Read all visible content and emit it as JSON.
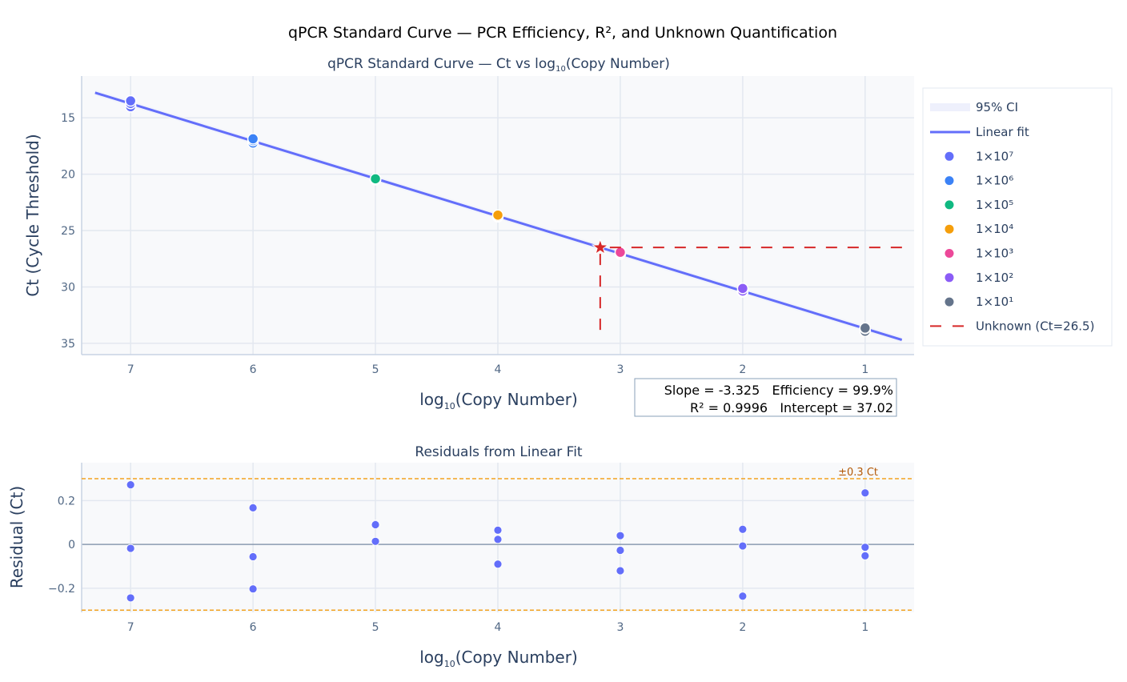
{
  "title": "qPCR Standard Curve — PCR Efficiency, R², and Unknown Quantification",
  "colors": {
    "fit": "#636efa",
    "unknown": "#d62728",
    "threshold": "#f2a221",
    "threshold_text": "#b35806",
    "ci": "#eef0fc",
    "plot_bg": "#f8f9fb",
    "grid": "#e3e8f0"
  },
  "chart_data": [
    {
      "type": "scatter",
      "title": "qPCR Standard Curve — Ct vs log",
      "title_sub": "10",
      "title_end": "(Copy Number)",
      "xlabel_pre": "log",
      "xlabel_sub": "10",
      "xlabel_post": "(Copy Number)",
      "ylabel": "Ct (Cycle Threshold)",
      "xlim": [
        7.4,
        0.6
      ],
      "ylim": [
        36.0,
        11.3
      ],
      "xticks": [
        7,
        6,
        5,
        4,
        3,
        2,
        1
      ],
      "yticks": [
        15,
        20,
        25,
        30,
        35
      ],
      "grid": true,
      "fit": {
        "slope": -3.325,
        "intercept": 37.02,
        "x_range": [
          7.29,
          0.7
        ],
        "ci_halfwidth": 0.25,
        "name": "Linear fit"
      },
      "ci_name": "95% CI",
      "series": [
        {
          "name": "1×10⁷",
          "x": 7,
          "color": "#636efa",
          "ct": [
            14.017,
            13.727,
            13.501
          ]
        },
        {
          "name": "1×10⁶",
          "x": 6,
          "color": "#3b82f6",
          "ct": [
            17.237,
            17.014,
            16.867
          ]
        },
        {
          "name": "1×10⁵",
          "x": 5,
          "color": "#10b981",
          "ct": [
            20.488,
            20.485,
            20.409
          ]
        },
        {
          "name": "1×10⁴",
          "x": 4,
          "color": "#f59e0b",
          "ct": [
            23.785,
            23.743,
            23.63
          ]
        },
        {
          "name": "1×10³",
          "x": 3,
          "color": "#ec4899",
          "ct": [
            27.085,
            27.018,
            26.925
          ]
        },
        {
          "name": "1×10²",
          "x": 2,
          "color": "#8b5cf6",
          "ct": [
            30.439,
            30.363,
            30.134
          ]
        },
        {
          "name": "1×10¹",
          "x": 1,
          "color": "#64748b",
          "ct": [
            33.93,
            33.682,
            33.643
          ]
        }
      ],
      "unknown": {
        "name": "Unknown (Ct=26.5)",
        "ct": 26.5,
        "x": 3.164,
        "drop_to_ct": 33.9
      },
      "legend": "right",
      "annotation": {
        "line1": "Slope = -3.325   Efficiency = 99.9%",
        "line2": "R² = 0.9996   Intercept = 37.02"
      }
    },
    {
      "type": "scatter",
      "title": "Residuals from Linear Fit",
      "xlabel_pre": "log",
      "xlabel_sub": "10",
      "xlabel_post": "(Copy Number)",
      "ylabel": "Residual (Ct)",
      "xlim": [
        7.4,
        0.6
      ],
      "ylim": [
        -0.31,
        0.373
      ],
      "xticks": [
        7,
        6,
        5,
        4,
        3,
        2,
        1
      ],
      "yticks": [
        0.2,
        0,
        -0.2
      ],
      "ytick_labels": [
        "0.2",
        "0",
        "−0.2"
      ],
      "threshold": 0.3,
      "threshold_label": "±0.3 Ct",
      "points": [
        {
          "x": 7,
          "r": [
            0.272,
            -0.018,
            -0.244
          ]
        },
        {
          "x": 6,
          "r": [
            0.167,
            -0.056,
            -0.203
          ]
        },
        {
          "x": 5,
          "r": [
            0.093,
            0.09,
            0.014
          ]
        },
        {
          "x": 4,
          "r": [
            0.065,
            0.023,
            -0.09
          ]
        },
        {
          "x": 3,
          "r": [
            0.04,
            -0.027,
            -0.12
          ]
        },
        {
          "x": 2,
          "r": [
            0.069,
            -0.007,
            -0.236
          ]
        },
        {
          "x": 1,
          "r": [
            0.235,
            -0.013,
            -0.052
          ]
        }
      ]
    }
  ]
}
